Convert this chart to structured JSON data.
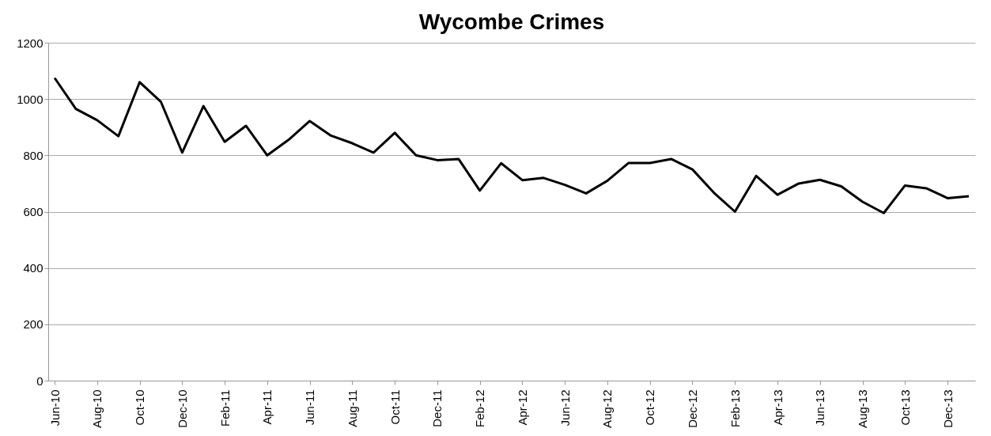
{
  "chart_data": {
    "type": "line",
    "title": "Wycombe Crimes",
    "categories": [
      "Jun-10",
      null,
      "Aug-10",
      null,
      "Oct-10",
      null,
      "Dec-10",
      null,
      "Feb-11",
      null,
      "Apr-11",
      null,
      "Jun-11",
      null,
      "Aug-11",
      null,
      "Oct-11",
      null,
      "Dec-11",
      null,
      "Feb-12",
      null,
      "Apr-12",
      null,
      "Jun-12",
      null,
      "Aug-12",
      null,
      "Oct-12",
      null,
      "Dec-12",
      null,
      "Feb-13",
      null,
      "Apr-13",
      null,
      "Jun-13",
      null,
      "Aug-13",
      null,
      "Oct-13",
      null,
      "Dec-13",
      null
    ],
    "series": [
      {
        "color": "#000000",
        "values": [
          1075,
          965,
          925,
          868,
          1060,
          990,
          810,
          975,
          848,
          905,
          800,
          855,
          922,
          870,
          843,
          810,
          880,
          800,
          783,
          787,
          675,
          772,
          712,
          720,
          695,
          665,
          710,
          773,
          773,
          787,
          750,
          668,
          600,
          727,
          660,
          700,
          713,
          690,
          635,
          595,
          693,
          683,
          648,
          655
        ]
      }
    ],
    "ylim": [
      0,
      1200
    ],
    "yticks": [
      0,
      200,
      400,
      600,
      800,
      1000,
      1200
    ],
    "grid": "y",
    "marker": "none",
    "line_style": "solid"
  }
}
